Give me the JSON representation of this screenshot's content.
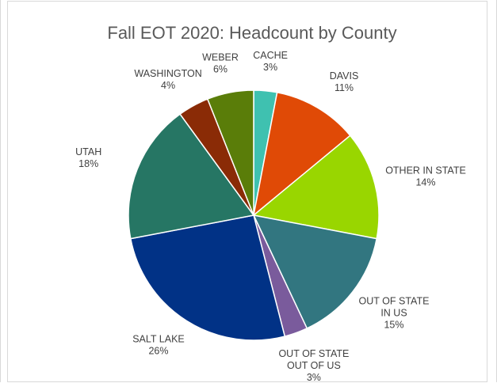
{
  "chart_data": {
    "type": "pie",
    "title": "Fall EOT 2020: Headcount by County",
    "slices": [
      {
        "label_lines": [
          "CACHE"
        ],
        "value": 3,
        "value_label": "3%",
        "color": "#3fc1b0"
      },
      {
        "label_lines": [
          "DAVIS"
        ],
        "value": 11,
        "value_label": "11%",
        "color": "#e04a06"
      },
      {
        "label_lines": [
          "OTHER IN STATE"
        ],
        "value": 14,
        "value_label": "14%",
        "color": "#99d600"
      },
      {
        "label_lines": [
          "OUT OF STATE",
          "IN US"
        ],
        "value": 15,
        "value_label": "15%",
        "color": "#327680"
      },
      {
        "label_lines": [
          "OUT OF STATE",
          "OUT OF US"
        ],
        "value": 3,
        "value_label": "3%",
        "color": "#7a5b9c"
      },
      {
        "label_lines": [
          "SALT LAKE"
        ],
        "value": 26,
        "value_label": "26%",
        "color": "#013286"
      },
      {
        "label_lines": [
          "UTAH"
        ],
        "value": 18,
        "value_label": "18%",
        "color": "#267664"
      },
      {
        "label_lines": [
          "WASHINGTON"
        ],
        "value": 4,
        "value_label": "4%",
        "color": "#8a2b06"
      },
      {
        "label_lines": [
          "WEBER"
        ],
        "value": 6,
        "value_label": "6%",
        "color": "#5a7d09"
      }
    ]
  }
}
